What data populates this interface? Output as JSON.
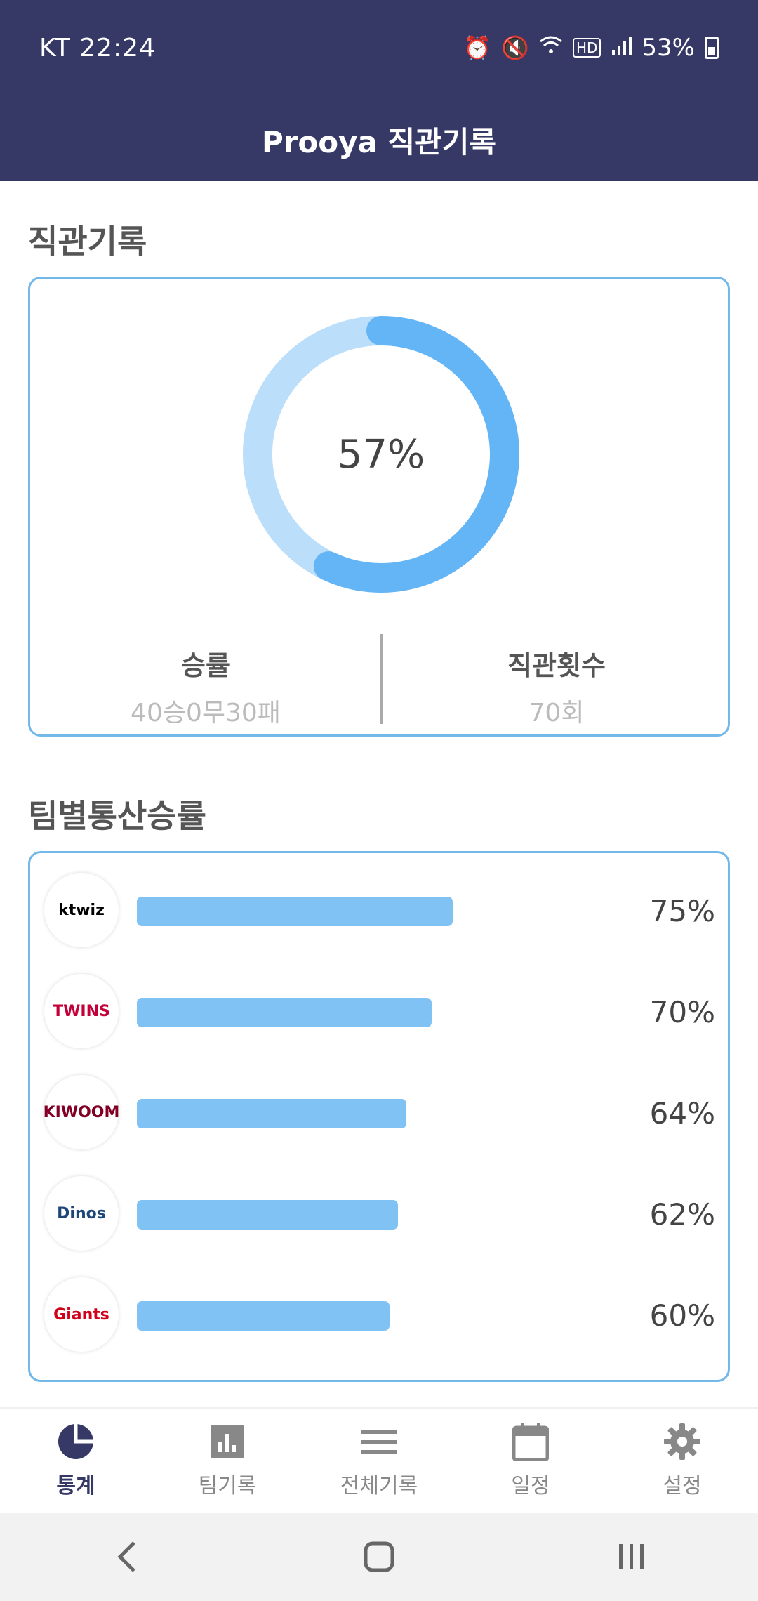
{
  "status_bar": {
    "carrier_time": "KT 22:24",
    "battery": "53%",
    "icons": [
      "alarm-icon",
      "mute-icon",
      "wifi-icon",
      "hd-icon",
      "signal-icon",
      "battery-icon"
    ]
  },
  "app_bar": {
    "title": "Prooya 직관기록"
  },
  "record_section": {
    "title": "직관기록",
    "win_rate_percent_text": "57%",
    "win_rate": 0.57,
    "win_label": "승률",
    "win_value": "40승0무30패",
    "count_label": "직관횟수",
    "count_value": "70회",
    "colors": {
      "ring_main": "#64b5f6",
      "ring_bg": "#bbdefb"
    }
  },
  "team_section": {
    "title": "팀별통산승률",
    "teams": [
      {
        "logo_text": "ktwiz",
        "logo_color": "#000000",
        "percent_text": "75%",
        "value": 0.75
      },
      {
        "logo_text": "TWINS",
        "logo_color": "#c30037",
        "percent_text": "70%",
        "value": 0.7
      },
      {
        "logo_text": "KIWOOM",
        "logo_color": "#820024",
        "percent_text": "64%",
        "value": 0.64
      },
      {
        "logo_text": "Dinos",
        "logo_color": "#1d467a",
        "percent_text": "62%",
        "value": 0.62
      },
      {
        "logo_text": "Giants",
        "logo_color": "#d0021b",
        "percent_text": "60%",
        "value": 0.6
      }
    ],
    "bar_color": "#81c2f5"
  },
  "bottom_nav": {
    "items": [
      {
        "label": "통계",
        "icon": "pie-chart-icon",
        "active": true
      },
      {
        "label": "팀기록",
        "icon": "bar-chart-icon",
        "active": false
      },
      {
        "label": "전체기록",
        "icon": "list-icon",
        "active": false
      },
      {
        "label": "일정",
        "icon": "calendar-icon",
        "active": false
      },
      {
        "label": "설정",
        "icon": "gear-icon",
        "active": false
      }
    ]
  },
  "system_nav": {
    "buttons": [
      "back-icon",
      "home-icon",
      "recents-icon"
    ]
  }
}
